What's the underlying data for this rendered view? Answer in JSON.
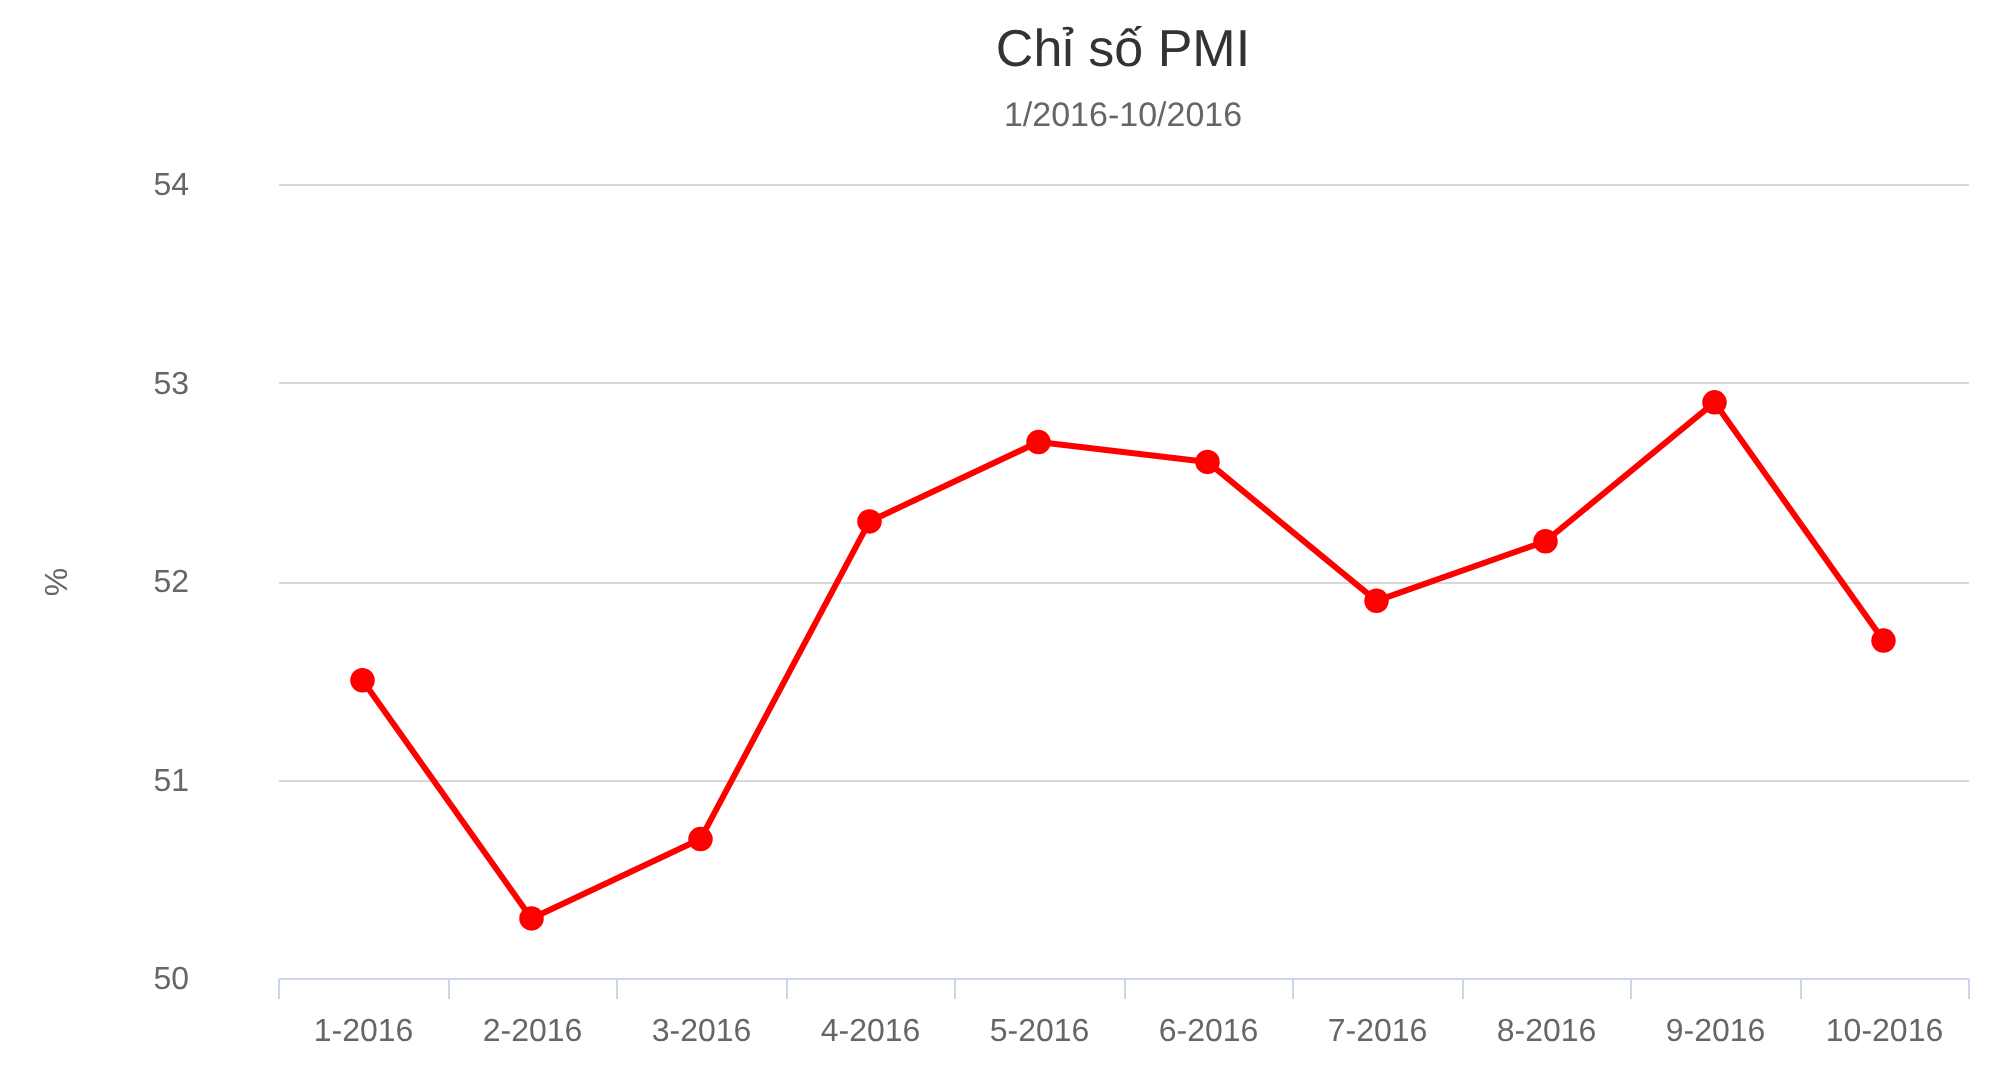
{
  "chart_data": {
    "type": "line",
    "title": "Chỉ số PMI",
    "subtitle": "1/2016-10/2016",
    "ylabel": "%",
    "categories": [
      "1-2016",
      "2-2016",
      "3-2016",
      "4-2016",
      "5-2016",
      "6-2016",
      "7-2016",
      "8-2016",
      "9-2016",
      "10-2016"
    ],
    "series": [
      {
        "color": "#ff0000",
        "values": [
          51.5,
          50.3,
          50.7,
          52.3,
          52.7,
          52.6,
          51.9,
          52.2,
          52.9,
          51.7
        ]
      }
    ],
    "ylim": [
      50,
      54
    ],
    "yticks": [
      50,
      51,
      52,
      53,
      54
    ],
    "grid": "y",
    "marker": "circle",
    "line_style": "solid"
  }
}
